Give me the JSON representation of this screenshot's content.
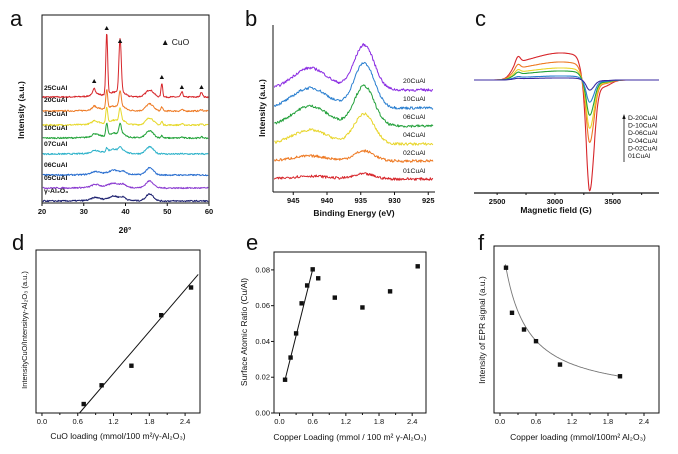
{
  "chart_data": [
    {
      "panel": "a",
      "type": "line",
      "xlabel": "2θ°",
      "ylabel": "Intensity (a.u.)",
      "xlim": [
        20,
        60
      ],
      "xticks": [
        "20",
        "30",
        "40",
        "50",
        "60"
      ],
      "legend": "▲ CuO",
      "cuo_markers_2theta": [
        32.5,
        35.5,
        38.7,
        48.7,
        53.5,
        58.2
      ],
      "series": [
        {
          "name": "25CuAl",
          "color": "#d7262b",
          "cuo_weight": 1.0
        },
        {
          "name": "20CuAl",
          "color": "#ee7a24",
          "cuo_weight": 0.3
        },
        {
          "name": "15CuAl",
          "color": "#e6d82a",
          "cuo_weight": 0.25
        },
        {
          "name": "10CuAl",
          "color": "#23a33a",
          "cuo_weight": 0.2
        },
        {
          "name": "07CuAl",
          "color": "#2bb1c9",
          "cuo_weight": 0.06
        },
        {
          "name": "06CuAl",
          "color": "#2a6fd0",
          "cuo_weight": 0.0
        },
        {
          "name": "05CuAl",
          "color": "#8a3ad0",
          "cuo_weight": 0.0
        },
        {
          "name": "γ-Al₂O₃",
          "color": "#1b1f6e",
          "cuo_weight": 0.0
        }
      ]
    },
    {
      "panel": "b",
      "type": "line",
      "xlabel": "Binding Energy (eV)",
      "ylabel": "Intensity (a.u.)",
      "xlim": [
        948,
        924
      ],
      "xticks": [
        "945",
        "940",
        "935",
        "930",
        "925"
      ],
      "main_peak_eV": 934.5,
      "satellite_peak_eV": 942.5,
      "series": [
        {
          "name": "20CuAl",
          "color": "#8a2be2",
          "main": 45,
          "sat": 22
        },
        {
          "name": "10CuAl",
          "color": "#2a7fd0",
          "main": 45,
          "sat": 20
        },
        {
          "name": "06CuAl",
          "color": "#22a03a",
          "main": 40,
          "sat": 20
        },
        {
          "name": "04CuAl",
          "color": "#e8d52a",
          "main": 30,
          "sat": 14
        },
        {
          "name": "02CuAl",
          "color": "#ee7a24",
          "main": 10,
          "sat": 5
        },
        {
          "name": "01CuAl",
          "color": "#d7262b",
          "main": 5,
          "sat": 3
        }
      ]
    },
    {
      "panel": "c",
      "type": "line",
      "xlabel": "Magnetic field (G)",
      "xlim": [
        2300,
        3900
      ],
      "xticks": [
        "2500",
        "3000",
        "3500"
      ],
      "series": [
        {
          "name": "D-20CuAl",
          "color": "#3a2aa0",
          "pos": 2,
          "neg": 10
        },
        {
          "name": "D-10CuAl",
          "color": "#2a7fd0",
          "pos": 4,
          "neg": 22
        },
        {
          "name": "D-06CuAl",
          "color": "#22a03a",
          "pos": 9,
          "neg": 35
        },
        {
          "name": "D-04CuAl",
          "color": "#e8d52a",
          "pos": 12,
          "neg": 48
        },
        {
          "name": "D-02CuAl",
          "color": "#ee7a24",
          "pos": 18,
          "neg": 62
        },
        {
          "name": "01CuAl",
          "color": "#d7262b",
          "pos": 27,
          "neg": 110
        }
      ]
    },
    {
      "panel": "d",
      "type": "scatter",
      "xlabel": "CuO loading (mmol/100 m²/γ-Al₂O₃)",
      "ylabel": "IntensityCuO/Intensityγ-Al₂O₃ (a.u.)",
      "xlim": [
        -0.1,
        2.65
      ],
      "ylim": [
        0,
        1
      ],
      "xticks": [
        "0.0",
        "0.6",
        "1.2",
        "1.8",
        "2.4"
      ],
      "x": [
        0.7,
        1.0,
        1.5,
        2.0,
        2.5
      ],
      "y": [
        0.055,
        0.17,
        0.29,
        0.6,
        0.77
      ],
      "fit_line": [
        [
          0.63,
          0.0
        ],
        [
          2.62,
          0.85
        ]
      ]
    },
    {
      "panel": "e",
      "type": "scatter",
      "xlabel": "Copper Loading (mmol / 100 m² γ-Al₂O₃)",
      "ylabel": "Surface Atomic Ratio (Cu/Al)",
      "xlim": [
        -0.1,
        2.65
      ],
      "ylim": [
        0,
        0.09
      ],
      "xticks": [
        "0.0",
        "0.6",
        "1.2",
        "1.8",
        "2.4"
      ],
      "yticks": [
        "0.00",
        "0.02",
        "0.04",
        "0.06",
        "0.08"
      ],
      "x": [
        0.1,
        0.2,
        0.3,
        0.4,
        0.5,
        0.6,
        0.7,
        1.0,
        1.5,
        2.0,
        2.5
      ],
      "y": [
        0.0186,
        0.031,
        0.0445,
        0.0613,
        0.0713,
        0.0803,
        0.0753,
        0.0645,
        0.059,
        0.068,
        0.082
      ],
      "fit_line": [
        [
          0.1,
          0.0186
        ],
        [
          0.6,
          0.0803
        ]
      ]
    },
    {
      "panel": "f",
      "type": "scatter",
      "xlabel": "Copper loading (mmol/100m² Al₂O₃)",
      "ylabel": "Intensity of EPR signal (a.u.)",
      "xlim": [
        -0.1,
        2.65
      ],
      "ylim": [
        0,
        1
      ],
      "xticks": [
        "0.0",
        "0.6",
        "1.2",
        "1.8",
        "2.4"
      ],
      "x": [
        0.1,
        0.2,
        0.4,
        0.6,
        1.0,
        2.0
      ],
      "y": [
        0.87,
        0.6,
        0.5,
        0.43,
        0.29,
        0.22
      ],
      "fit": {
        "a": 0.083,
        "b": 0.315,
        "c": 0.3
      }
    }
  ]
}
